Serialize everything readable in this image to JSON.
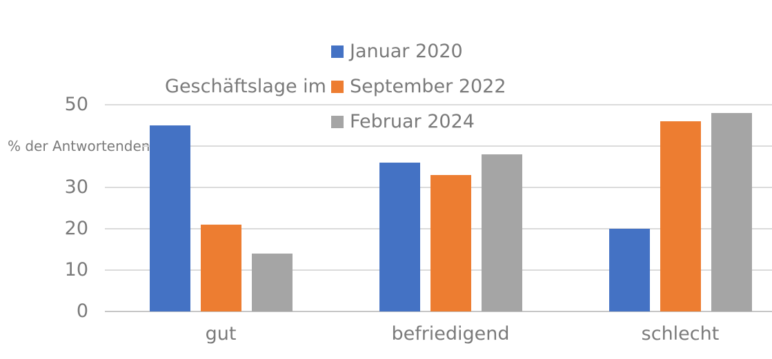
{
  "chart_data": {
    "type": "bar",
    "title": "Geschäftslage im",
    "ylabel": "% der Antwortenden",
    "categories": [
      "gut",
      "befriedigend",
      "schlecht"
    ],
    "series": [
      {
        "name": "Januar 2020",
        "color": "#4472C4",
        "values": [
          45,
          36,
          20
        ]
      },
      {
        "name": "September 2022",
        "color": "#ED7D31",
        "values": [
          21,
          33,
          46
        ]
      },
      {
        "name": "Februar 2024",
        "color": "#A5A5A5",
        "values": [
          14,
          38,
          48
        ]
      }
    ],
    "ylim": [
      0,
      50
    ],
    "yticks": [
      0,
      10,
      20,
      30,
      40,
      50
    ],
    "ytick_labels": [
      "0",
      "10",
      "20",
      "30",
      "",
      "50"
    ],
    "grid": true,
    "legend_position": "top-center",
    "colors": {
      "grid": "#DBDBDB",
      "axis_line": "#C6C6C6",
      "text": "#7A7A7A"
    }
  }
}
